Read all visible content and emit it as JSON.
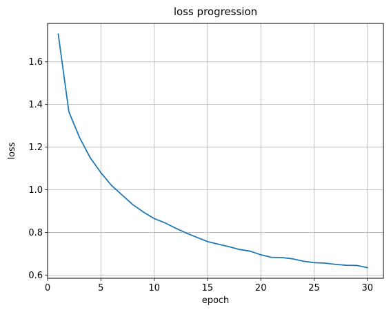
{
  "chart_data": {
    "type": "line",
    "title": "loss progression",
    "xlabel": "epoch",
    "ylabel": "loss",
    "xlim": [
      0,
      31.5
    ],
    "ylim": [
      0.585,
      1.78
    ],
    "grid": true,
    "xticks": [
      0,
      5,
      10,
      15,
      20,
      25,
      30
    ],
    "yticks": [
      0.6,
      0.8,
      1.0,
      1.2,
      1.4,
      1.6
    ],
    "ytick_labels": [
      "0.6",
      "0.8",
      "1.0",
      "1.2",
      "1.4",
      "1.6"
    ],
    "series": [
      {
        "color": "#1f77b4",
        "x": [
          1,
          2,
          3,
          4,
          5,
          6,
          7,
          8,
          9,
          10,
          11,
          12,
          13,
          14,
          15,
          16,
          17,
          18,
          19,
          20,
          21,
          22,
          23,
          24,
          25,
          26,
          27,
          28,
          29,
          30
        ],
        "y": [
          1.73,
          1.365,
          1.245,
          1.15,
          1.08,
          1.02,
          0.975,
          0.93,
          0.895,
          0.865,
          0.845,
          0.82,
          0.797,
          0.777,
          0.757,
          0.745,
          0.733,
          0.72,
          0.712,
          0.695,
          0.683,
          0.682,
          0.676,
          0.665,
          0.658,
          0.656,
          0.65,
          0.646,
          0.645,
          0.635
        ]
      }
    ]
  }
}
